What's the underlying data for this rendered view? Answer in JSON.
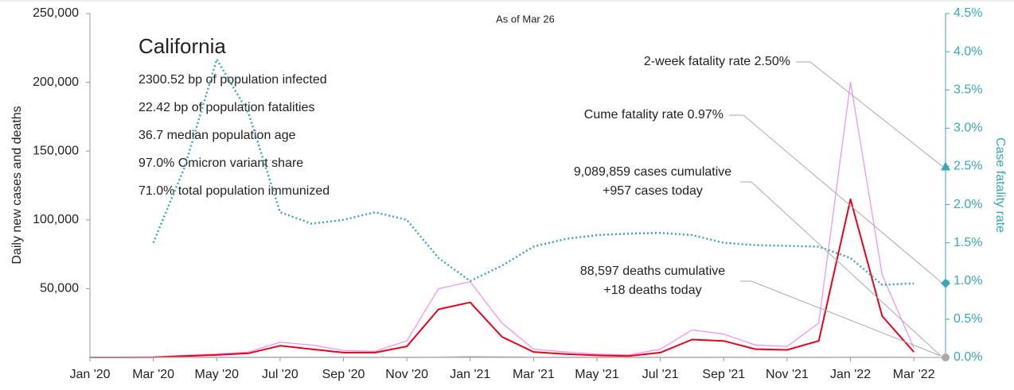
{
  "chart_data": {
    "type": "line",
    "subtitle": "As of Mar 26",
    "title": "California",
    "info": [
      "2300.52 bp of population infected",
      "22.42 bp of population fatalities",
      "36.7 median population age",
      "97.0% Omicron variant share",
      "71.0% total population immunized"
    ],
    "y_label": "Daily new cases and deaths",
    "y2_label": "Case fatality rate",
    "x": [
      "2020-01",
      "2020-02",
      "2020-03",
      "2020-04",
      "2020-05",
      "2020-06",
      "2020-07",
      "2020-08",
      "2020-09",
      "2020-10",
      "2020-11",
      "2020-12",
      "2021-01",
      "2021-02",
      "2021-03",
      "2021-04",
      "2021-05",
      "2021-06",
      "2021-07",
      "2021-08",
      "2021-09",
      "2021-10",
      "2021-11",
      "2021-12",
      "2022-01",
      "2022-02",
      "2022-03"
    ],
    "xlim": [
      "2020-01",
      "2022-04"
    ],
    "xticks": [
      {
        "value": "2020-01",
        "label": "Jan '20"
      },
      {
        "value": "2020-03",
        "label": "Mar '20"
      },
      {
        "value": "2020-05",
        "label": "May '20"
      },
      {
        "value": "2020-07",
        "label": "Jul '20"
      },
      {
        "value": "2020-09",
        "label": "Sep '20"
      },
      {
        "value": "2020-11",
        "label": "Nov '20"
      },
      {
        "value": "2021-01",
        "label": "Jan '21"
      },
      {
        "value": "2021-03",
        "label": "Mar '21"
      },
      {
        "value": "2021-05",
        "label": "May '21"
      },
      {
        "value": "2021-07",
        "label": "Jul '21"
      },
      {
        "value": "2021-09",
        "label": "Sep '21"
      },
      {
        "value": "2021-11",
        "label": "Nov '21"
      },
      {
        "value": "2022-01",
        "label": "Jan '22"
      },
      {
        "value": "2022-03",
        "label": "Mar '22"
      }
    ],
    "ylim": [
      0,
      250000
    ],
    "yticks": [
      {
        "value": 50000,
        "label": "50,000"
      },
      {
        "value": 100000,
        "label": "100,000"
      },
      {
        "value": 150000,
        "label": "150,000"
      },
      {
        "value": 200000,
        "label": "200,000"
      },
      {
        "value": 250000,
        "label": "250,000"
      }
    ],
    "y2lim": [
      0,
      4.5
    ],
    "y2ticks": [
      {
        "value": 0,
        "label": "0.0%"
      },
      {
        "value": 0.5,
        "label": "0.5%"
      },
      {
        "value": 1,
        "label": "1.0%"
      },
      {
        "value": 1.5,
        "label": "1.5%"
      },
      {
        "value": 2,
        "label": "2.0%"
      },
      {
        "value": 2.5,
        "label": "2.5%"
      },
      {
        "value": 3,
        "label": "3.0%"
      },
      {
        "value": 3.5,
        "label": "3.5%"
      },
      {
        "value": 4,
        "label": "4.0%"
      },
      {
        "value": 4.5,
        "label": "4.5%"
      }
    ],
    "series": [
      {
        "color": "#f08ef0",
        "width": 1.2,
        "dash": "",
        "values": [
          0,
          0,
          400,
          1500,
          2500,
          4000,
          11000,
          9000,
          5000,
          4500,
          12000,
          50000,
          55000,
          25000,
          6000,
          4000,
          2500,
          1800,
          6000,
          20000,
          17000,
          9000,
          8000,
          25000,
          200000,
          60000,
          7000
        ]
      },
      {
        "color": "#e8001c",
        "width": 2,
        "dash": "",
        "values": [
          0,
          0,
          200,
          1000,
          1800,
          3000,
          8500,
          6000,
          3500,
          3500,
          8000,
          35000,
          40000,
          15000,
          4000,
          2500,
          1500,
          1000,
          3500,
          13000,
          12000,
          6000,
          5500,
          12000,
          115000,
          30000,
          4000
        ]
      },
      {
        "color": "#aaaaaa",
        "width": 1.5,
        "dash": "",
        "values": [
          0,
          0,
          20,
          80,
          80,
          70,
          120,
          130,
          100,
          60,
          60,
          200,
          500,
          350,
          150,
          50,
          30,
          20,
          30,
          80,
          100,
          60,
          40,
          50,
          150,
          250,
          60
        ]
      },
      {
        "color": "#3aa7b8",
        "width": 2.5,
        "dash": "2 3",
        "axis": "y2",
        "values": [
          null,
          null,
          1.5,
          2.5,
          3.9,
          3.2,
          1.9,
          1.75,
          1.8,
          1.9,
          1.8,
          1.3,
          1.0,
          1.2,
          1.45,
          1.55,
          1.6,
          1.62,
          1.63,
          1.6,
          1.5,
          1.47,
          1.46,
          1.45,
          1.3,
          0.95,
          0.97
        ]
      }
    ],
    "fatality_markers": [
      {
        "label": "2-week fatality rate 2.50%",
        "value": 2.5
      },
      {
        "label": "Cume fatality rate 0.97%",
        "value": 0.97
      }
    ],
    "count_notes": [
      {
        "lines": [
          "9,089,859 cases cumulative",
          "+957 cases today"
        ]
      },
      {
        "lines": [
          "88,597 deaths cumulative",
          "+18 deaths today"
        ]
      }
    ]
  }
}
